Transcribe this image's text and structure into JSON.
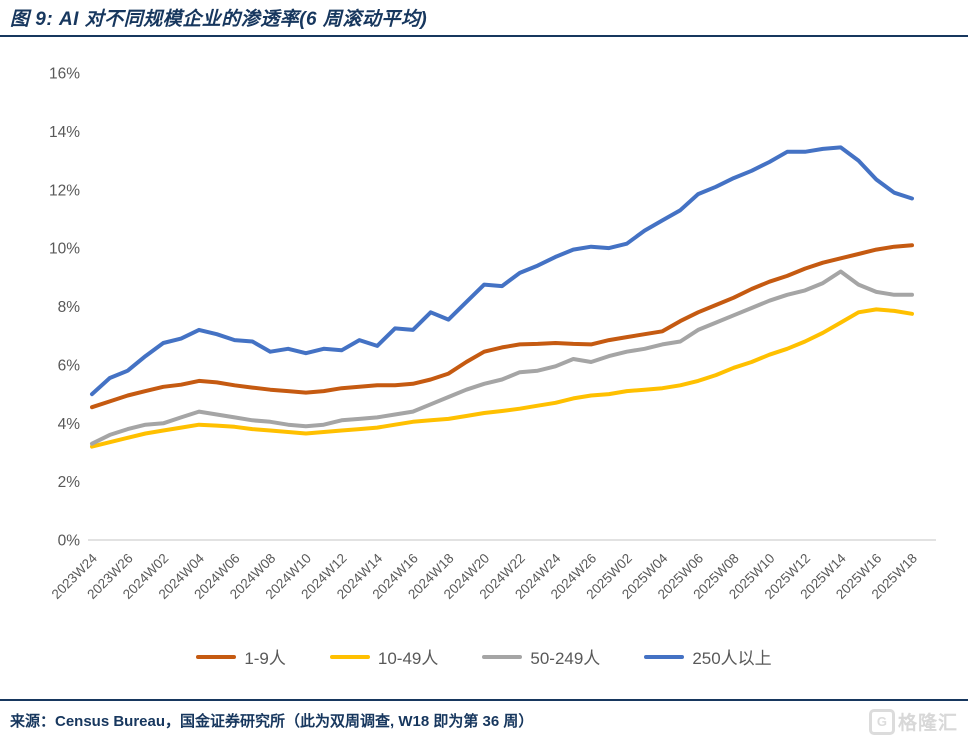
{
  "header": {
    "title": "图 9: AI 对不同规模企业的渗透率(6 周滚动平均)"
  },
  "footer": {
    "source": "来源：Census Bureau，国金证券研究所（此为双周调查, W18 即为第 36 周）",
    "logo_g": "G",
    "logo_text": "格隆汇"
  },
  "chart_data": {
    "type": "line",
    "title": "AI 对不同规模企业的渗透率(6 周滚动平均)",
    "xlabel": "",
    "ylabel": "",
    "ylim": [
      0,
      16
    ],
    "grid": false,
    "legend_position": "bottom",
    "y_tick_labels": [
      "0%",
      "2%",
      "4%",
      "6%",
      "8%",
      "10%",
      "12%",
      "14%",
      "16%"
    ],
    "x_tick_labels": [
      "2023W24",
      "2023W26",
      "2024W02",
      "2024W04",
      "2024W06",
      "2024W08",
      "2024W10",
      "2024W12",
      "2024W14",
      "2024W16",
      "2024W18",
      "2024W20",
      "2024W22",
      "2024W24",
      "2024W26",
      "2025W02",
      "2025W04",
      "2025W06",
      "2025W08",
      "2025W10",
      "2025W12",
      "2025W14",
      "2025W16",
      "2025W18"
    ],
    "points_per_label": 2,
    "note": "data points are bi-weekly survey periods; labels shown every other period",
    "series": [
      {
        "name": "1-9人",
        "color": "#C55A11",
        "values": [
          4.55,
          4.75,
          4.95,
          5.1,
          5.25,
          5.32,
          5.45,
          5.4,
          5.3,
          5.22,
          5.15,
          5.1,
          5.05,
          5.1,
          5.2,
          5.25,
          5.3,
          5.3,
          5.35,
          5.5,
          5.7,
          6.1,
          6.45,
          6.6,
          6.7,
          6.72,
          6.75,
          6.72,
          6.7,
          6.85,
          6.95,
          7.05,
          7.15,
          7.5,
          7.8,
          8.05,
          8.3,
          8.6,
          8.85,
          9.05,
          9.3,
          9.5,
          9.65,
          9.8,
          9.95,
          10.05,
          10.1
        ]
      },
      {
        "name": "10-49人",
        "color": "#FFC000",
        "values": [
          3.2,
          3.35,
          3.5,
          3.65,
          3.75,
          3.85,
          3.95,
          3.92,
          3.88,
          3.8,
          3.75,
          3.7,
          3.65,
          3.7,
          3.75,
          3.8,
          3.85,
          3.95,
          4.05,
          4.1,
          4.15,
          4.25,
          4.35,
          4.42,
          4.5,
          4.6,
          4.7,
          4.85,
          4.95,
          5.0,
          5.1,
          5.15,
          5.2,
          5.3,
          5.45,
          5.65,
          5.9,
          6.1,
          6.35,
          6.55,
          6.8,
          7.1,
          7.45,
          7.8,
          7.9,
          7.85,
          7.75
        ]
      },
      {
        "name": "50-249人",
        "color": "#A5A5A5",
        "values": [
          3.3,
          3.6,
          3.8,
          3.95,
          4.0,
          4.2,
          4.4,
          4.3,
          4.2,
          4.1,
          4.05,
          3.95,
          3.9,
          3.95,
          4.1,
          4.15,
          4.2,
          4.3,
          4.4,
          4.65,
          4.9,
          5.15,
          5.35,
          5.5,
          5.75,
          5.8,
          5.95,
          6.2,
          6.1,
          6.3,
          6.45,
          6.55,
          6.7,
          6.8,
          7.2,
          7.45,
          7.7,
          7.95,
          8.2,
          8.4,
          8.55,
          8.8,
          9.2,
          8.75,
          8.5,
          8.4,
          8.4
        ]
      },
      {
        "name": "250人以上",
        "color": "#4472C4",
        "values": [
          5.0,
          5.55,
          5.8,
          6.3,
          6.75,
          6.9,
          7.2,
          7.05,
          6.85,
          6.8,
          6.45,
          6.55,
          6.4,
          6.55,
          6.5,
          6.85,
          6.65,
          7.25,
          7.2,
          7.8,
          7.55,
          8.15,
          8.75,
          8.7,
          9.15,
          9.4,
          9.7,
          9.95,
          10.05,
          10.0,
          10.15,
          10.6,
          10.95,
          11.3,
          11.85,
          12.1,
          12.4,
          12.65,
          12.95,
          13.3,
          13.3,
          13.4,
          13.45,
          13.0,
          12.35,
          11.9,
          11.7
        ]
      }
    ]
  }
}
